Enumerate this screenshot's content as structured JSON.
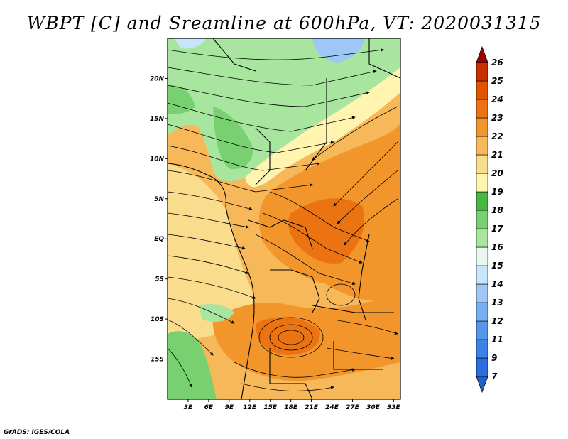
{
  "title": "WBPT [C] and Sreamline at 600hPa, VT: 2020031315",
  "credit": "GrADS: IGES/COLA",
  "map": {
    "lat_labels": [
      "20N",
      "15N",
      "10N",
      "5N",
      "EQ",
      "5S",
      "10S",
      "15S"
    ],
    "lon_labels": [
      "3E",
      "6E",
      "9E",
      "12E",
      "15E",
      "18E",
      "21E",
      "24E",
      "27E",
      "30E",
      "33E"
    ],
    "lat_values": [
      20,
      15,
      10,
      5,
      0,
      -5,
      -10,
      -15
    ],
    "lon_values": [
      3,
      6,
      9,
      12,
      15,
      18,
      21,
      24,
      27,
      30,
      33
    ],
    "extent": {
      "lon_min": 0,
      "lon_max": 34,
      "lat_min": -20,
      "lat_max": 25
    }
  },
  "colorbar": {
    "levels": [
      "7",
      "9",
      "11",
      "12",
      "13",
      "14",
      "15",
      "16",
      "17",
      "18",
      "19",
      "20",
      "21",
      "22",
      "23",
      "24",
      "25",
      "26"
    ],
    "colors": [
      "#1e5fd6",
      "#2a6ee0",
      "#3d82e6",
      "#5797ea",
      "#78aff0",
      "#9dc8f5",
      "#c8e6fb",
      "#e8f8f0",
      "#a8e6a0",
      "#78d070",
      "#44b840",
      "#fff4b0",
      "#fadd8c",
      "#f7b85a",
      "#f2962c",
      "#ec7312",
      "#e05500",
      "#c93000",
      "#a00000"
    ]
  }
}
